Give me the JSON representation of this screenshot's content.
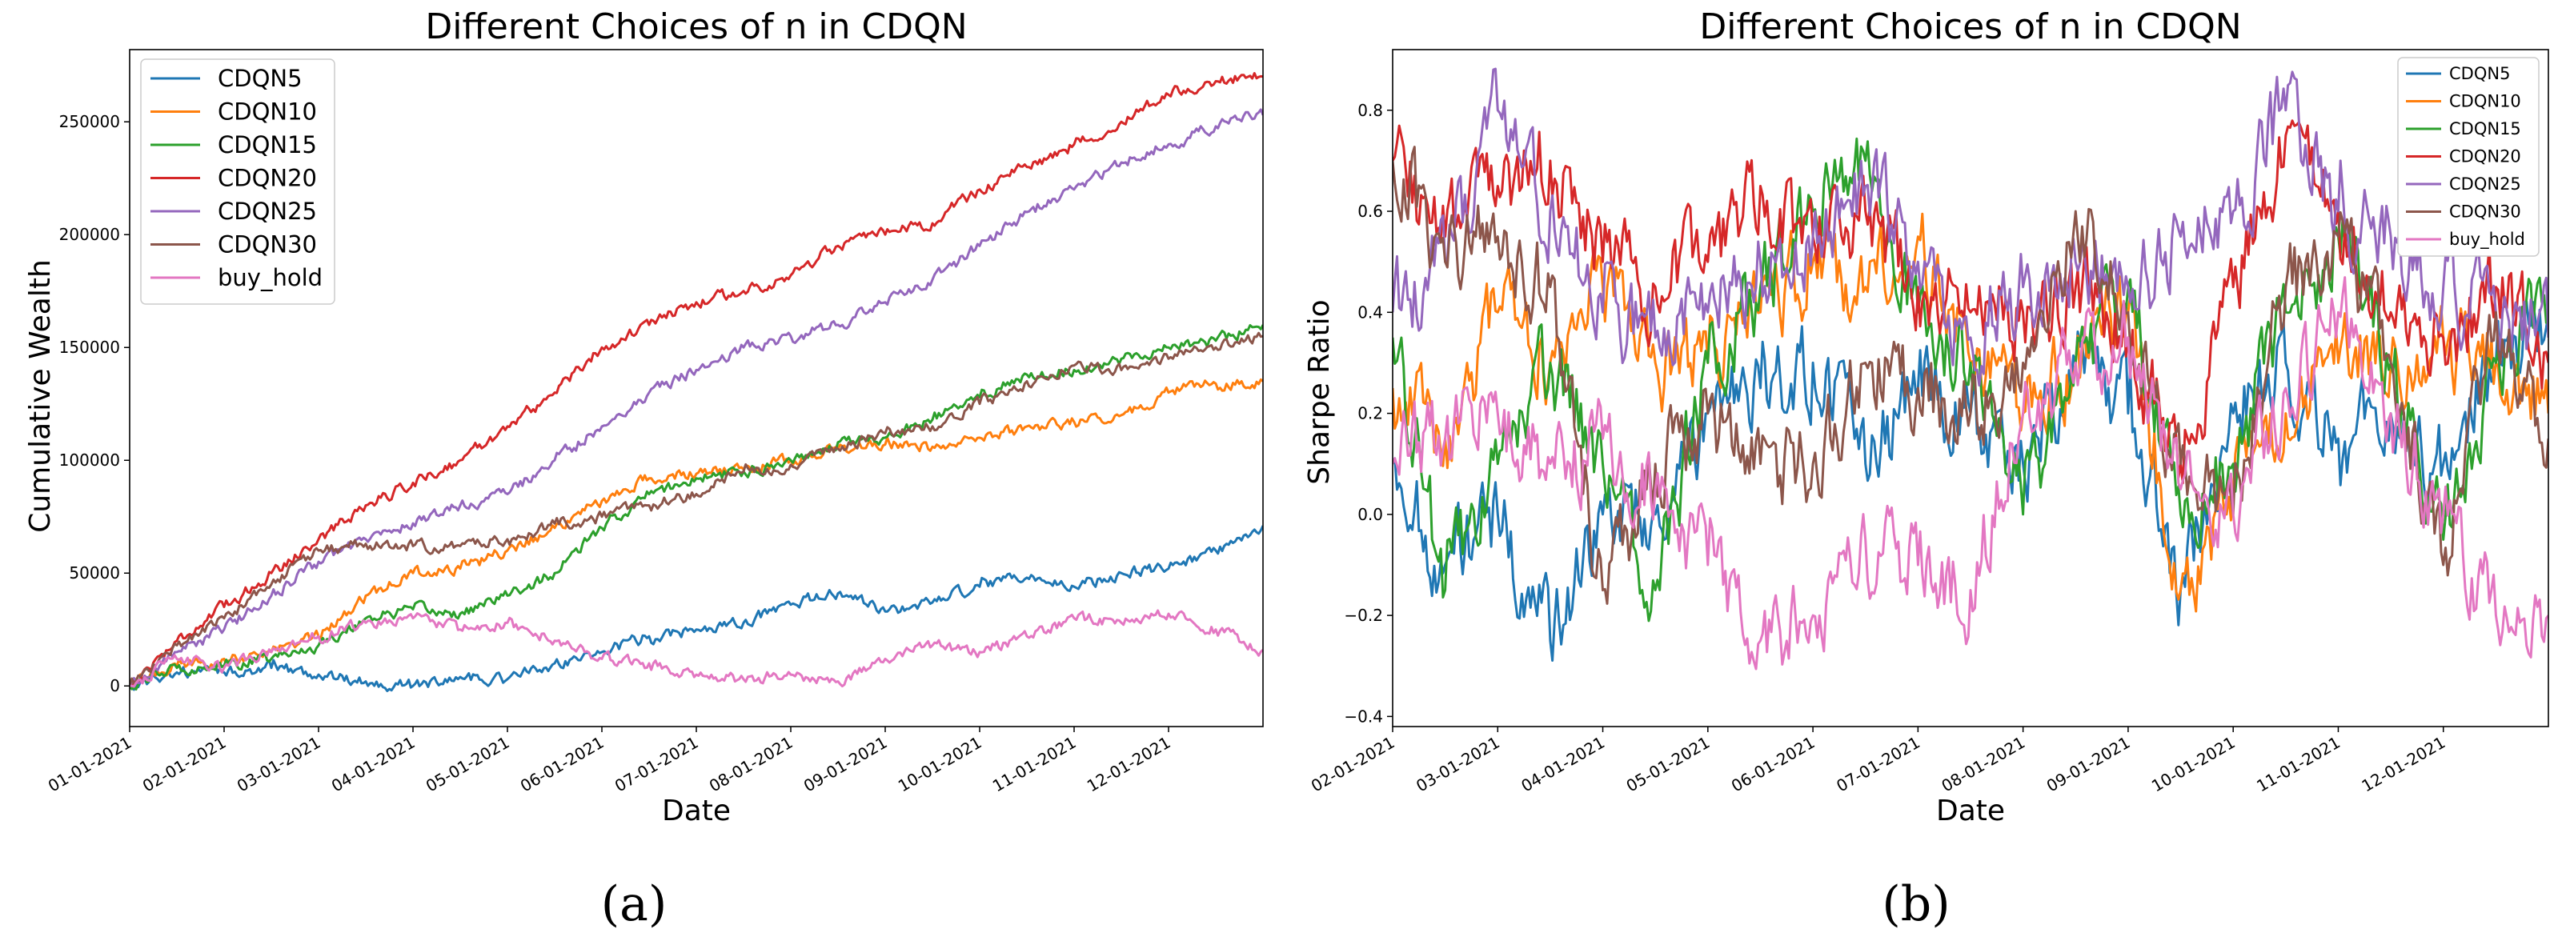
{
  "chart_data": [
    {
      "type": "line",
      "title": "Different Choices of n in CDQN",
      "xlabel": "Date",
      "ylabel": "Cumulative Wealth",
      "ylim": [
        -18000,
        282000
      ],
      "yticks": [
        0,
        50000,
        100000,
        150000,
        200000,
        250000
      ],
      "ytick_labels": [
        "0",
        "50000",
        "100000",
        "150000",
        "200000",
        "250000"
      ],
      "xlim": [
        0,
        12
      ],
      "xticks": [
        0,
        1,
        2,
        3,
        4,
        5,
        6,
        7,
        8,
        9,
        10,
        11
      ],
      "xtick_labels": [
        "01-01-2021",
        "02-01-2021",
        "03-01-2021",
        "04-01-2021",
        "05-01-2021",
        "06-01-2021",
        "07-01-2021",
        "08-01-2021",
        "09-01-2021",
        "10-01-2021",
        "11-01-2021",
        "12-01-2021"
      ],
      "legend_position": "top-left",
      "series": [
        {
          "name": "CDQN5",
          "color": "#1f77b4",
          "x": [
            0,
            0.5,
            1,
            1.5,
            2,
            2.5,
            3,
            3.5,
            4,
            4.5,
            5,
            5.5,
            6,
            6.5,
            7,
            7.5,
            8,
            8.5,
            9,
            9.5,
            10,
            10.5,
            11,
            11.5,
            12
          ],
          "values": [
            0,
            6000,
            6000,
            8000,
            5000,
            2000,
            0,
            4000,
            3000,
            10000,
            15000,
            22000,
            25000,
            28000,
            36000,
            41000,
            33000,
            37000,
            44000,
            48000,
            44000,
            50000,
            52000,
            60000,
            71000
          ]
        },
        {
          "name": "CDQN10",
          "color": "#ff7f0e",
          "x": [
            0,
            0.5,
            1,
            1.5,
            2,
            2.5,
            3,
            3.5,
            4,
            4.5,
            5,
            5.5,
            6,
            6.5,
            7,
            7.5,
            8,
            8.5,
            9,
            9.5,
            10,
            10.5,
            11,
            11.5,
            12
          ],
          "values": [
            0,
            9000,
            12000,
            15000,
            22000,
            40000,
            50000,
            52000,
            60000,
            70000,
            82000,
            92000,
            94000,
            96000,
            100000,
            105000,
            107000,
            106000,
            110000,
            115000,
            117000,
            120000,
            130000,
            134000,
            135000
          ]
        },
        {
          "name": "CDQN15",
          "color": "#2ca02c",
          "x": [
            0,
            0.5,
            1,
            1.5,
            2,
            2.5,
            3,
            3.5,
            4,
            4.5,
            5,
            5.5,
            6,
            6.5,
            7,
            7.5,
            8,
            8.5,
            9,
            9.5,
            10,
            10.5,
            11,
            11.5,
            12
          ],
          "values": [
            0,
            8000,
            9000,
            12000,
            18000,
            30000,
            34000,
            32000,
            40000,
            50000,
            70000,
            85000,
            92000,
            95000,
            100000,
            108000,
            110000,
            118000,
            128000,
            138000,
            140000,
            145000,
            150000,
            153000,
            160000
          ]
        },
        {
          "name": "CDQN20",
          "color": "#d62728",
          "x": [
            0,
            0.5,
            1,
            1.5,
            2,
            2.5,
            3,
            3.5,
            4,
            4.5,
            5,
            5.5,
            6,
            6.5,
            7,
            7.5,
            8,
            8.5,
            9,
            9.5,
            10,
            10.5,
            11,
            11.5,
            12
          ],
          "values": [
            0,
            20000,
            35000,
            50000,
            65000,
            80000,
            90000,
            100000,
            115000,
            130000,
            150000,
            160000,
            170000,
            175000,
            182000,
            195000,
            200000,
            205000,
            220000,
            230000,
            240000,
            250000,
            262000,
            268000,
            270000
          ]
        },
        {
          "name": "CDQN25",
          "color": "#9467bd",
          "x": [
            0,
            0.5,
            1,
            1.5,
            2,
            2.5,
            3,
            3.5,
            4,
            4.5,
            5,
            5.5,
            6,
            6.5,
            7,
            7.5,
            8,
            8.5,
            9,
            9.5,
            10,
            10.5,
            11,
            11.5,
            12
          ],
          "values": [
            0,
            15000,
            25000,
            40000,
            55000,
            65000,
            72000,
            80000,
            85000,
            100000,
            115000,
            130000,
            140000,
            150000,
            155000,
            160000,
            170000,
            180000,
            195000,
            210000,
            220000,
            232000,
            240000,
            248000,
            253000
          ]
        },
        {
          "name": "CDQN30",
          "color": "#8c564b",
          "x": [
            0,
            0.5,
            1,
            1.5,
            2,
            2.5,
            3,
            3.5,
            4,
            4.5,
            5,
            5.5,
            6,
            6.5,
            7,
            7.5,
            8,
            8.5,
            9,
            9.5,
            10,
            10.5,
            11,
            11.5,
            12
          ],
          "values": [
            0,
            18000,
            30000,
            45000,
            60000,
            63000,
            62000,
            62000,
            65000,
            72000,
            75000,
            80000,
            85000,
            95000,
            98000,
            105000,
            112000,
            115000,
            125000,
            135000,
            142000,
            140000,
            145000,
            150000,
            155000
          ]
        },
        {
          "name": "buy_hold",
          "color": "#e377c2",
          "x": [
            0,
            0.5,
            1,
            1.5,
            2,
            2.5,
            3,
            3.5,
            4,
            4.5,
            5,
            5.5,
            6,
            6.5,
            7,
            7.5,
            8,
            8.5,
            9,
            9.5,
            10,
            10.5,
            11,
            11.5,
            12
          ],
          "values": [
            0,
            12000,
            8000,
            15000,
            22000,
            28000,
            30000,
            25000,
            28000,
            20000,
            12000,
            10000,
            5000,
            3000,
            5000,
            2000,
            12000,
            18000,
            15000,
            22000,
            30000,
            28000,
            32000,
            25000,
            16000
          ]
        }
      ]
    },
    {
      "type": "line",
      "title": "Different Choices of n in CDQN",
      "xlabel": "Date",
      "ylabel": "Sharpe Ratio",
      "ylim": [
        -0.42,
        0.92
      ],
      "yticks": [
        -0.4,
        -0.2,
        0.0,
        0.2,
        0.4,
        0.6,
        0.8
      ],
      "ytick_labels": [
        "−0.4",
        "−0.2",
        "0.0",
        "0.2",
        "0.4",
        "0.6",
        "0.8"
      ],
      "xlim": [
        0,
        11
      ],
      "xticks": [
        0,
        1,
        2,
        3,
        4,
        5,
        6,
        7,
        8,
        9,
        10
      ],
      "xtick_labels": [
        "02-01-2021",
        "03-01-2021",
        "04-01-2021",
        "05-01-2021",
        "06-01-2021",
        "07-01-2021",
        "08-01-2021",
        "09-01-2021",
        "10-01-2021",
        "11-01-2021",
        "12-01-2021"
      ],
      "legend_position": "top-right",
      "series": [
        {
          "name": "CDQN5",
          "color": "#1f77b4",
          "x": [
            0,
            0.5,
            1,
            1.5,
            2,
            2.5,
            3,
            3.5,
            4,
            4.5,
            5,
            5.5,
            6,
            6.5,
            7,
            7.5,
            8,
            8.5,
            9,
            9.5,
            10,
            10.5,
            11
          ],
          "values": [
            0.1,
            -0.1,
            0.0,
            -0.25,
            0.0,
            0.0,
            0.2,
            0.25,
            0.3,
            0.1,
            0.25,
            0.2,
            0.1,
            0.3,
            0.2,
            -0.15,
            0.2,
            0.3,
            0.15,
            0.2,
            0.1,
            0.3,
            0.4
          ]
        },
        {
          "name": "CDQN10",
          "color": "#ff7f0e",
          "x": [
            0,
            0.5,
            1,
            1.5,
            2,
            2.5,
            3,
            3.5,
            4,
            4.5,
            5,
            5.5,
            6,
            6.5,
            7,
            7.5,
            8,
            8.5,
            9,
            9.5,
            10,
            10.5,
            11
          ],
          "values": [
            0.25,
            0.15,
            0.4,
            0.3,
            0.45,
            0.3,
            0.3,
            0.4,
            0.5,
            0.45,
            0.55,
            0.3,
            0.2,
            0.3,
            0.4,
            -0.15,
            0.05,
            0.2,
            0.3,
            0.3,
            0.35,
            0.3,
            0.2
          ]
        },
        {
          "name": "CDQN15",
          "color": "#2ca02c",
          "x": [
            0,
            0.5,
            1,
            1.5,
            2,
            2.5,
            3,
            3.5,
            4,
            4.5,
            5,
            5.5,
            6,
            6.5,
            7,
            7.5,
            8,
            8.5,
            9,
            9.5,
            10,
            10.5,
            11
          ],
          "values": [
            0.35,
            -0.15,
            0.1,
            0.3,
            0.1,
            -0.15,
            0.3,
            0.45,
            0.6,
            0.7,
            0.4,
            0.3,
            0.0,
            0.3,
            0.45,
            0.0,
            0.1,
            0.4,
            0.55,
            0.3,
            -0.05,
            0.3,
            0.4
          ]
        },
        {
          "name": "CDQN20",
          "color": "#d62728",
          "x": [
            0,
            0.5,
            1,
            1.5,
            2,
            2.5,
            3,
            3.5,
            4,
            4.5,
            5,
            5.5,
            6,
            6.5,
            7,
            7.5,
            8,
            8.5,
            9,
            9.5,
            10,
            10.5,
            11
          ],
          "values": [
            0.7,
            0.55,
            0.65,
            0.7,
            0.5,
            0.45,
            0.5,
            0.65,
            0.55,
            0.6,
            0.45,
            0.4,
            0.4,
            0.45,
            0.35,
            0.1,
            0.45,
            0.75,
            0.6,
            0.4,
            0.35,
            0.45,
            0.3
          ]
        },
        {
          "name": "CDQN25",
          "color": "#9467bd",
          "x": [
            0,
            0.5,
            1,
            1.5,
            2,
            2.5,
            3,
            3.5,
            4,
            4.5,
            5,
            5.5,
            6,
            6.5,
            7,
            7.5,
            8,
            8.5,
            9,
            9.5,
            10,
            10.5,
            11
          ],
          "values": [
            0.4,
            0.5,
            0.8,
            0.6,
            0.4,
            0.35,
            0.4,
            0.5,
            0.55,
            0.65,
            0.5,
            0.35,
            0.45,
            0.5,
            0.45,
            0.55,
            0.6,
            0.8,
            0.6,
            0.55,
            0.45,
            0.4,
            0.35
          ]
        },
        {
          "name": "CDQN30",
          "color": "#8c564b",
          "x": [
            0,
            0.5,
            1,
            1.5,
            2,
            2.5,
            3,
            3.5,
            4,
            4.5,
            5,
            5.5,
            6,
            6.5,
            7,
            7.5,
            8,
            8.5,
            9,
            9.5,
            10,
            10.5,
            11
          ],
          "values": [
            0.7,
            0.5,
            0.55,
            0.45,
            -0.15,
            0.1,
            0.2,
            0.1,
            0.1,
            0.3,
            0.25,
            0.2,
            0.3,
            0.6,
            0.4,
            0.1,
            0.0,
            0.45,
            0.55,
            0.3,
            -0.1,
            0.4,
            0.15
          ]
        },
        {
          "name": "buy_hold",
          "color": "#e377c2",
          "x": [
            0,
            0.5,
            1,
            1.5,
            2,
            2.5,
            3,
            3.5,
            4,
            4.5,
            5,
            5.5,
            6,
            6.5,
            7,
            7.5,
            8,
            8.5,
            9,
            9.5,
            10,
            10.5,
            11
          ],
          "values": [
            0.1,
            0.15,
            0.2,
            0.1,
            0.15,
            0.05,
            -0.1,
            -0.25,
            -0.2,
            -0.05,
            -0.1,
            -0.15,
            0.2,
            0.3,
            0.35,
            0.05,
            0.0,
            0.25,
            0.4,
            0.2,
            0.0,
            -0.2,
            -0.2
          ]
        }
      ]
    }
  ],
  "captions": [
    "(a)",
    "(b)"
  ]
}
